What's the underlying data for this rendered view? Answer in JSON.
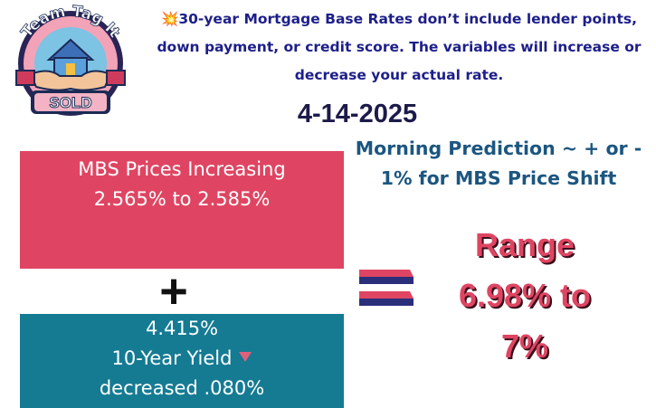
{
  "logo": {
    "top_text": "Team Tag It",
    "bottom_text": "SOLD"
  },
  "header": {
    "emoji": "💥",
    "line1": "30-year Mortgage Base Rates don’t include lender points,",
    "line2": "down payment, or credit score. The variables will increase or",
    "line3": "decrease your actual rate."
  },
  "date": "4-14-2025",
  "prediction": {
    "line1": "Morning Prediction ~ + or -",
    "line2": "1% for MBS Price Shift"
  },
  "mbs": {
    "title": "MBS Prices Increasing",
    "range": "2.565% to 2.585%"
  },
  "plus_symbol": "+",
  "yield": {
    "value": "4.415%",
    "label": "10-Year Yield",
    "change": "decreased .080%"
  },
  "result": {
    "label": "Range",
    "line2": "6.98%  to",
    "line3": "7%"
  },
  "colors": {
    "pink": "#df4562",
    "teal": "#157b93",
    "navy": "#1d1f8a",
    "prediction_blue": "#1c5680"
  }
}
